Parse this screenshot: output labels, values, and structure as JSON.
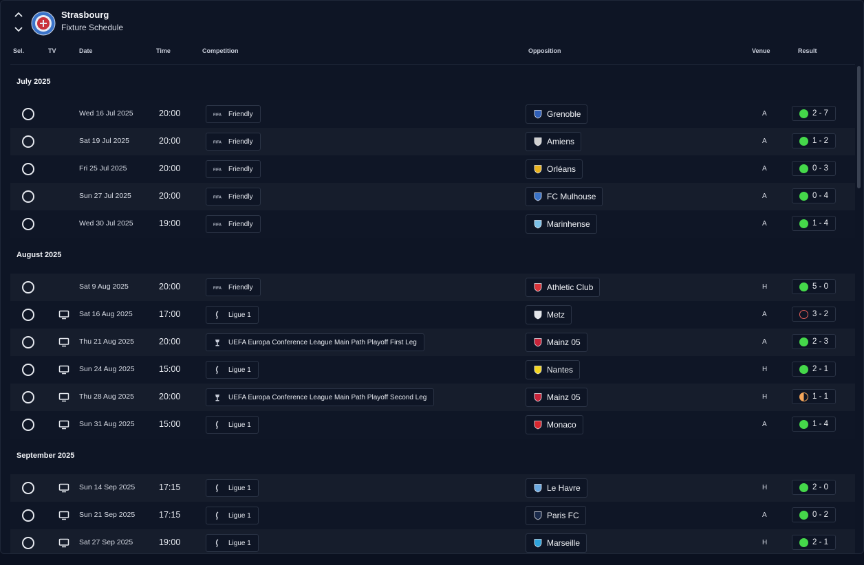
{
  "header": {
    "club": "Strasbourg",
    "subtitle": "Fixture Schedule"
  },
  "columns": {
    "sel": "Sel.",
    "tv": "TV",
    "date": "Date",
    "time": "Time",
    "competition": "Competition",
    "opposition": "Opposition",
    "venue": "Venue",
    "result": "Result"
  },
  "months": [
    {
      "label": "July 2025",
      "fixtures": [
        {
          "tv": false,
          "date": "Wed 16 Jul 2025",
          "time": "20:00",
          "comp": "Friendly",
          "comp_icon": "fifa-icon",
          "opp": "Grenoble",
          "opp_color": "#2f5fb8",
          "venue": "A",
          "result": "2 - 7",
          "outcome": "win"
        },
        {
          "tv": false,
          "date": "Sat 19 Jul 2025",
          "time": "20:00",
          "comp": "Friendly",
          "comp_icon": "fifa-icon",
          "opp": "Amiens",
          "opp_color": "#cfcfcf",
          "venue": "A",
          "result": "1 - 2",
          "outcome": "win"
        },
        {
          "tv": false,
          "date": "Fri 25 Jul 2025",
          "time": "20:00",
          "comp": "Friendly",
          "comp_icon": "fifa-icon",
          "opp": "Orléans",
          "opp_color": "#e8b21e",
          "venue": "A",
          "result": "0 - 3",
          "outcome": "win"
        },
        {
          "tv": false,
          "date": "Sun 27 Jul 2025",
          "time": "20:00",
          "comp": "Friendly",
          "comp_icon": "fifa-icon",
          "opp": "FC Mulhouse",
          "opp_color": "#3a73c8",
          "venue": "A",
          "result": "0 - 4",
          "outcome": "win"
        },
        {
          "tv": false,
          "date": "Wed 30 Jul 2025",
          "time": "19:00",
          "comp": "Friendly",
          "comp_icon": "fifa-icon",
          "opp": "Marinhense",
          "opp_color": "#7cc1e8",
          "venue": "A",
          "result": "1 - 4",
          "outcome": "win"
        }
      ]
    },
    {
      "label": "August 2025",
      "fixtures": [
        {
          "tv": false,
          "date": "Sat 9 Aug 2025",
          "time": "20:00",
          "comp": "Friendly",
          "comp_icon": "fifa-icon",
          "opp": "Athletic Club",
          "opp_color": "#d8343a",
          "venue": "H",
          "result": "5 - 0",
          "outcome": "win"
        },
        {
          "tv": true,
          "date": "Sat 16 Aug 2025",
          "time": "17:00",
          "comp": "Ligue 1",
          "comp_icon": "ligue1-icon",
          "opp": "Metz",
          "opp_color": "#e4e6ea",
          "venue": "A",
          "result": "3 - 2",
          "outcome": "loss"
        },
        {
          "tv": true,
          "date": "Thu 21 Aug 2025",
          "time": "20:00",
          "comp": "UEFA Europa Conference League Main Path Playoff First Leg",
          "comp_icon": "uecl-icon",
          "opp": "Mainz 05",
          "opp_color": "#c8243a",
          "venue": "A",
          "result": "2 - 3",
          "outcome": "win"
        },
        {
          "tv": true,
          "date": "Sun 24 Aug 2025",
          "time": "15:00",
          "comp": "Ligue 1",
          "comp_icon": "ligue1-icon",
          "opp": "Nantes",
          "opp_color": "#f4d520",
          "venue": "H",
          "result": "2 - 1",
          "outcome": "win"
        },
        {
          "tv": true,
          "date": "Thu 28 Aug 2025",
          "time": "20:00",
          "comp": "UEFA Europa Conference League Main Path Playoff Second Leg",
          "comp_icon": "uecl-icon",
          "opp": "Mainz 05",
          "opp_color": "#c8243a",
          "venue": "H",
          "result": "1 - 1",
          "outcome": "draw"
        },
        {
          "tv": true,
          "date": "Sun 31 Aug 2025",
          "time": "15:00",
          "comp": "Ligue 1",
          "comp_icon": "ligue1-icon",
          "opp": "Monaco",
          "opp_color": "#d8262e",
          "venue": "A",
          "result": "1 - 4",
          "outcome": "win"
        }
      ]
    },
    {
      "label": "September 2025",
      "fixtures": [
        {
          "tv": true,
          "date": "Sun 14 Sep 2025",
          "time": "17:15",
          "comp": "Ligue 1",
          "comp_icon": "ligue1-icon",
          "opp": "Le Havre",
          "opp_color": "#6aa8e0",
          "venue": "H",
          "result": "2 - 0",
          "outcome": "win"
        },
        {
          "tv": true,
          "date": "Sun 21 Sep 2025",
          "time": "17:15",
          "comp": "Ligue 1",
          "comp_icon": "ligue1-icon",
          "opp": "Paris FC",
          "opp_color": "#1a2a4a",
          "venue": "A",
          "result": "0 - 2",
          "outcome": "win"
        },
        {
          "tv": true,
          "date": "Sat 27 Sep 2025",
          "time": "19:00",
          "comp": "Ligue 1",
          "comp_icon": "ligue1-icon",
          "opp": "Marseille",
          "opp_color": "#2ea3dc",
          "venue": "H",
          "result": "2 - 1",
          "outcome": "win"
        }
      ]
    }
  ]
}
